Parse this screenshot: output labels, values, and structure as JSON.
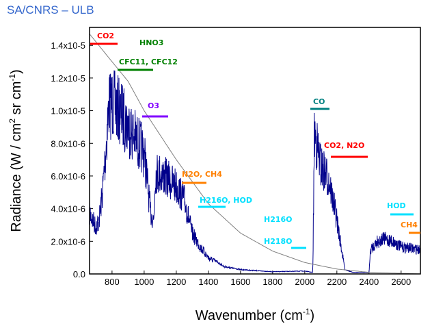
{
  "header": "SA/CNRS – ULB",
  "chart_data": {
    "type": "line",
    "title": "",
    "xlabel": "Wavenumber (cm-1)",
    "ylabel": "Radiance (W / cm2 sr cm-1)",
    "xlim": [
      660,
      2720
    ],
    "ylim": [
      0,
      1.51e-05
    ],
    "x_ticks": [
      800,
      1000,
      1200,
      1400,
      1600,
      1800,
      2000,
      2200,
      2400,
      2600
    ],
    "y_ticks": [
      {
        "v": 0,
        "label": "0.0"
      },
      {
        "v": 2e-06,
        "label": "2.0x10-6"
      },
      {
        "v": 4e-06,
        "label": "4.0x10-6"
      },
      {
        "v": 6e-06,
        "label": "6.0x10-6"
      },
      {
        "v": 8e-06,
        "label": "8.0x10-6"
      },
      {
        "v": 1e-05,
        "label": "1.0x10-5"
      },
      {
        "v": 1.2e-05,
        "label": "1.2x10-5"
      },
      {
        "v": 1.4e-05,
        "label": "1.4x10-5"
      }
    ],
    "series": [
      {
        "name": "measured spectrum",
        "color": "#00008b",
        "unit": "1e-6",
        "x": [
          660,
          700,
          720,
          740,
          760,
          780,
          800,
          850,
          900,
          950,
          1000,
          1010,
          1040,
          1060,
          1070,
          1100,
          1150,
          1200,
          1250,
          1300,
          1350,
          1400,
          1500,
          1600,
          1800,
          2000,
          2050,
          2060,
          2100,
          2150,
          2200,
          2250,
          2300,
          2400,
          2410,
          2450,
          2500,
          2550,
          2600,
          2720
        ],
        "y": [
          4.5,
          3.5,
          4,
          6,
          9,
          12.5,
          12.7,
          12,
          11,
          10,
          9,
          8,
          4.5,
          4,
          7.5,
          7.5,
          7,
          6.5,
          5.5,
          3,
          2,
          1.2,
          0.5,
          0.3,
          0.15,
          0.2,
          0.1,
          10.5,
          8,
          7,
          4,
          0.3,
          0.1,
          0.1,
          1.8,
          2.4,
          2.6,
          2.4,
          2,
          1.8
        ]
      },
      {
        "name": "blackbody curve",
        "color": "#808080",
        "unit": "1e-6",
        "x": [
          660,
          800,
          900,
          1000,
          1200,
          1400,
          1600,
          1800,
          2000,
          2200,
          2400,
          2720
        ],
        "y": [
          14.7,
          13,
          11.8,
          10,
          7,
          4.3,
          2.5,
          1.4,
          0.7,
          0.3,
          0.1,
          0
        ]
      }
    ],
    "annotations": [
      {
        "text": "CO2",
        "color": "#ff0000"
      },
      {
        "text": "HNO3",
        "color": "#008000"
      },
      {
        "text": "CFC11, CFC12",
        "color": "#008000"
      },
      {
        "text": "O3",
        "color": "#8000ff"
      },
      {
        "text": "N2O, CH4",
        "color": "#ff8000"
      },
      {
        "text": "H216O, HOD",
        "color": "#00e0ff"
      },
      {
        "text": "H216O",
        "color": "#00e0ff"
      },
      {
        "text": "H218O",
        "color": "#00e0ff"
      },
      {
        "text": "CO",
        "color": "#008080"
      },
      {
        "text": "CO2, N2O",
        "color": "#ff0000"
      },
      {
        "text": "HOD",
        "color": "#00e0ff"
      },
      {
        "text": "CH4",
        "color": "#ff8000"
      }
    ]
  }
}
